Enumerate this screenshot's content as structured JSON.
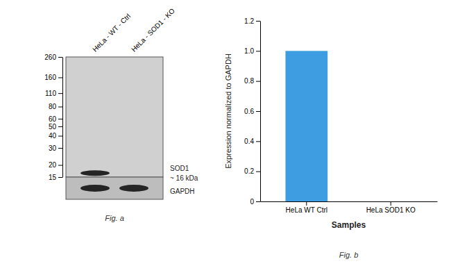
{
  "chart_data": [
    {
      "type": "blot",
      "title": "Fig. a",
      "categories": [
        "HeLa - WT - Ctrl",
        "HeLa - SOD1 - KO"
      ],
      "log": "y",
      "ylim": [
        15,
        260
      ],
      "yticks": [
        260,
        160,
        110,
        80,
        60,
        50,
        40,
        30,
        20,
        15
      ],
      "series": [
        {
          "name": "SOD1",
          "color": "#252525",
          "values": [
            16.5,
            null
          ]
        }
      ],
      "annotations": [
        "~ 16 kDa",
        "GAPDH"
      ]
    },
    {
      "type": "bar",
      "title": "Fig. b",
      "categories": [
        "HeLa WT Ctrl",
        "HeLa SOD1 KO"
      ],
      "values": [
        1.0,
        0.0
      ],
      "color": "#3d9de0",
      "ylim": [
        0,
        1.2
      ],
      "yticks": [
        0,
        0.2,
        0.4,
        0.6,
        0.8,
        {
          "value": 1.0,
          "label": "1.0"
        },
        1.2
      ],
      "ylabel": "Expression normalized to GAPDH",
      "xlabel": "Samples",
      "grid": false
    }
  ]
}
